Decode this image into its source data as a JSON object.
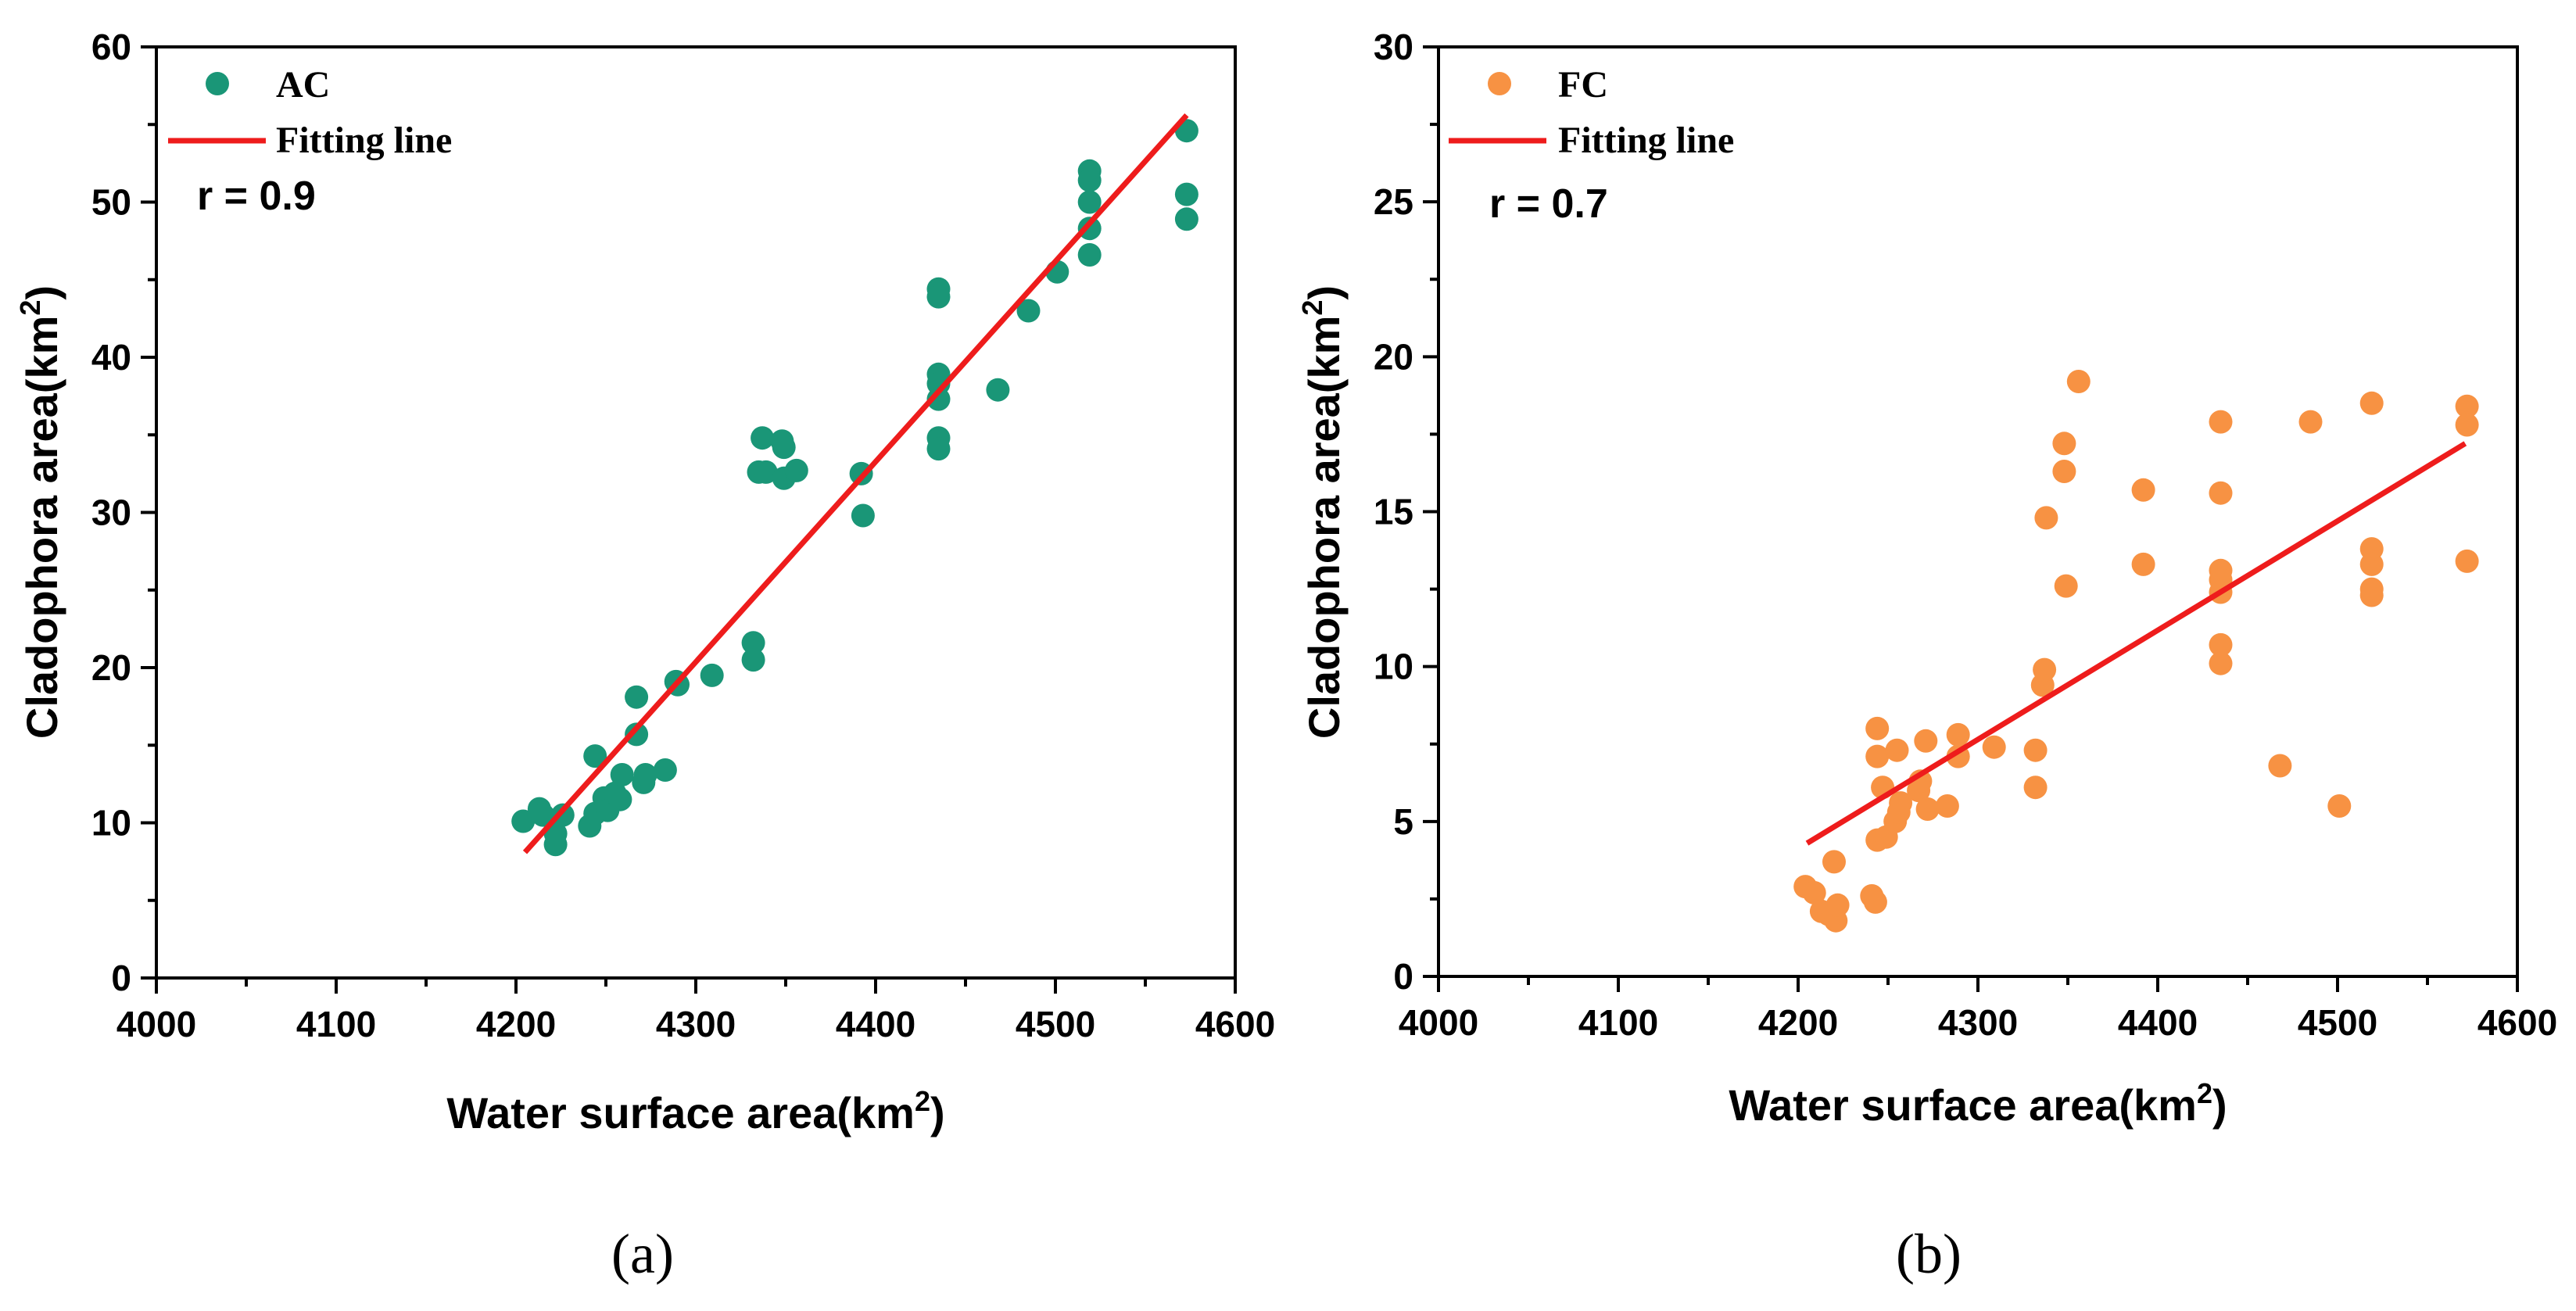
{
  "chart_data": [
    {
      "type": "scatter",
      "panel_label": "(a)",
      "xlabel": "Water surface area(km",
      "xlabel_sup": "2",
      "xlabel_end": ")",
      "ylabel": "Cladophora area(km",
      "ylabel_sup": "2",
      "ylabel_end": ")",
      "xlim": [
        4000,
        4600
      ],
      "ylim": [
        0,
        60
      ],
      "xticks": [
        "4000",
        "4100",
        "4200",
        "4300",
        "4400",
        "4500",
        "4600"
      ],
      "yticks": [
        "0",
        "10",
        "20",
        "30",
        "40",
        "50",
        "60"
      ],
      "x_tick_values": [
        4000,
        4100,
        4200,
        4300,
        4400,
        4500,
        4600
      ],
      "y_tick_values": [
        0,
        10,
        20,
        30,
        40,
        50,
        60
      ],
      "series_name": "AC",
      "fit_name": "Fitting line",
      "correlation": "r = 0.9",
      "point_color": "#1a9677",
      "fit_color": "#ee1c1c",
      "fit_line": [
        [
          4205,
          8.1
        ],
        [
          4573,
          55.6
        ]
      ],
      "points": [
        [
          4204,
          10.1
        ],
        [
          4213,
          10.9
        ],
        [
          4215,
          10.5
        ],
        [
          4222,
          8.6
        ],
        [
          4222,
          9.3
        ],
        [
          4226,
          10.5
        ],
        [
          4241,
          9.8
        ],
        [
          4244,
          14.3
        ],
        [
          4244,
          10.6
        ],
        [
          4249,
          11.6
        ],
        [
          4251,
          10.8
        ],
        [
          4255,
          11.9
        ],
        [
          4258,
          11.5
        ],
        [
          4259,
          13.1
        ],
        [
          4267,
          18.1
        ],
        [
          4267,
          15.7
        ],
        [
          4271,
          12.6
        ],
        [
          4272,
          13.1
        ],
        [
          4283,
          13.4
        ],
        [
          4289,
          19.1
        ],
        [
          4290,
          18.9
        ],
        [
          4309,
          19.5
        ],
        [
          4332,
          21.6
        ],
        [
          4332,
          20.5
        ],
        [
          4335,
          32.6
        ],
        [
          4337,
          34.8
        ],
        [
          4339,
          32.6
        ],
        [
          4348,
          34.6
        ],
        [
          4349,
          32.2
        ],
        [
          4349,
          34.2
        ],
        [
          4356,
          32.7
        ],
        [
          4392,
          32.5
        ],
        [
          4393,
          29.8
        ],
        [
          4435,
          44.4
        ],
        [
          4435,
          43.9
        ],
        [
          4435,
          38.9
        ],
        [
          4435,
          38.3
        ],
        [
          4435,
          37.3
        ],
        [
          4435,
          34.8
        ],
        [
          4435,
          34.1
        ],
        [
          4468,
          37.9
        ],
        [
          4485,
          43.0
        ],
        [
          4501,
          45.5
        ],
        [
          4519,
          52.0
        ],
        [
          4519,
          51.4
        ],
        [
          4519,
          50.0
        ],
        [
          4519,
          48.3
        ],
        [
          4519,
          46.6
        ],
        [
          4573,
          54.6
        ],
        [
          4573,
          50.5
        ],
        [
          4573,
          48.9
        ]
      ]
    },
    {
      "type": "scatter",
      "panel_label": "(b)",
      "xlabel": "Water surface area(km",
      "xlabel_sup": "2",
      "xlabel_end": ")",
      "ylabel": "Cladophora area(km",
      "ylabel_sup": "2",
      "ylabel_end": ")",
      "xlim": [
        4000,
        4600
      ],
      "ylim": [
        0,
        30
      ],
      "xticks": [
        "4000",
        "4100",
        "4200",
        "4300",
        "4400",
        "4500",
        "4600"
      ],
      "yticks": [
        "0",
        "5",
        "10",
        "15",
        "20",
        "25",
        "30"
      ],
      "x_tick_values": [
        4000,
        4100,
        4200,
        4300,
        4400,
        4500,
        4600
      ],
      "y_tick_values": [
        0,
        5,
        10,
        15,
        20,
        25,
        30
      ],
      "series_name": "FC",
      "fit_name": "Fitting line",
      "correlation": "r = 0.7",
      "point_color": "#f79243",
      "fit_color": "#ee1c1c",
      "fit_line": [
        [
          4205,
          4.3
        ],
        [
          4571,
          17.2
        ]
      ],
      "points": [
        [
          4204,
          2.9
        ],
        [
          4209,
          2.7
        ],
        [
          4213,
          2.1
        ],
        [
          4217,
          2.0
        ],
        [
          4220,
          3.7
        ],
        [
          4221,
          1.8
        ],
        [
          4222,
          2.3
        ],
        [
          4241,
          2.6
        ],
        [
          4243,
          2.4
        ],
        [
          4244,
          8.0
        ],
        [
          4244,
          7.1
        ],
        [
          4244,
          4.4
        ],
        [
          4247,
          6.1
        ],
        [
          4249,
          4.5
        ],
        [
          4254,
          5.0
        ],
        [
          4255,
          7.3
        ],
        [
          4256,
          5.3
        ],
        [
          4257,
          5.6
        ],
        [
          4267,
          6.0
        ],
        [
          4268,
          6.3
        ],
        [
          4271,
          7.6
        ],
        [
          4272,
          5.4
        ],
        [
          4283,
          5.5
        ],
        [
          4289,
          7.1
        ],
        [
          4289,
          7.8
        ],
        [
          4309,
          7.4
        ],
        [
          4332,
          7.3
        ],
        [
          4332,
          6.1
        ],
        [
          4336,
          9.4
        ],
        [
          4337,
          9.9
        ],
        [
          4338,
          14.8
        ],
        [
          4348,
          17.2
        ],
        [
          4348,
          16.3
        ],
        [
          4349,
          12.6
        ],
        [
          4356,
          19.2
        ],
        [
          4392,
          15.7
        ],
        [
          4392,
          13.3
        ],
        [
          4435,
          17.9
        ],
        [
          4435,
          15.6
        ],
        [
          4435,
          13.1
        ],
        [
          4435,
          12.8
        ],
        [
          4435,
          12.4
        ],
        [
          4435,
          10.7
        ],
        [
          4435,
          10.1
        ],
        [
          4468,
          6.8
        ],
        [
          4485,
          17.9
        ],
        [
          4501,
          5.5
        ],
        [
          4519,
          18.5
        ],
        [
          4519,
          13.8
        ],
        [
          4519,
          13.3
        ],
        [
          4519,
          12.5
        ],
        [
          4519,
          12.3
        ],
        [
          4572,
          18.4
        ],
        [
          4572,
          17.8
        ],
        [
          4572,
          13.4
        ]
      ]
    }
  ]
}
